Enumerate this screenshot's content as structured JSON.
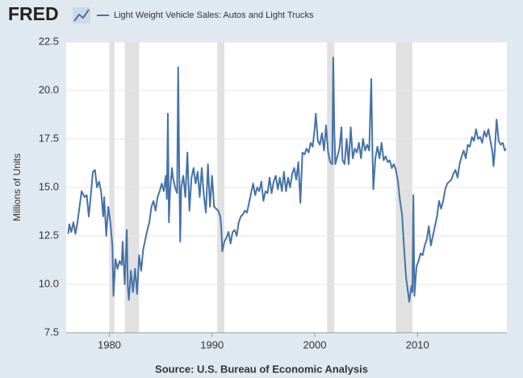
{
  "chart_data": {
    "type": "line",
    "logo": "FRED",
    "ylabel": "Millions of Units",
    "source": "Source: U.S. Bureau of Economic Analysis",
    "xlim": [
      1975.8,
      2018.7
    ],
    "ylim": [
      7.5,
      22.5
    ],
    "xticks": [
      1980,
      1990,
      2000,
      2010
    ],
    "yticks": [
      7.5,
      {
        "value": 10,
        "label": "10.0"
      },
      12.5,
      {
        "value": 15,
        "label": "15.0"
      },
      17.5,
      {
        "value": 20,
        "label": "20.0"
      },
      22.5
    ],
    "grid": true,
    "recession_color": "#e1e1e1",
    "recessions": [
      [
        1980.0,
        1980.5
      ],
      [
        1981.5,
        1982.9
      ],
      [
        1990.5,
        1991.2
      ],
      [
        2001.2,
        2001.9
      ],
      [
        2007.9,
        2009.5
      ]
    ],
    "x": [
      1976.0,
      1976.1,
      1976.3,
      1976.5,
      1976.7,
      1976.9,
      1977.1,
      1977.3,
      1977.6,
      1977.8,
      1978.0,
      1978.2,
      1978.4,
      1978.6,
      1978.8,
      1979.0,
      1979.2,
      1979.4,
      1979.5,
      1979.7,
      1979.9,
      1980.1,
      1980.3,
      1980.4,
      1980.6,
      1980.8,
      1981.0,
      1981.2,
      1981.3,
      1981.5,
      1981.7,
      1981.8,
      1981.9,
      1982.1,
      1982.3,
      1982.5,
      1982.7,
      1982.9,
      1983.1,
      1983.3,
      1983.5,
      1983.7,
      1983.9,
      1984.1,
      1984.3,
      1984.5,
      1984.7,
      1984.9,
      1985.1,
      1985.3,
      1985.5,
      1985.6,
      1985.7,
      1985.8,
      1985.9,
      1986.1,
      1986.2,
      1986.4,
      1986.6,
      1986.7,
      1986.8,
      1986.9,
      1987.0,
      1987.2,
      1987.4,
      1987.6,
      1987.8,
      1988.0,
      1988.2,
      1988.4,
      1988.6,
      1988.8,
      1989.0,
      1989.2,
      1989.4,
      1989.6,
      1989.8,
      1990.0,
      1990.2,
      1990.4,
      1990.6,
      1990.8,
      1990.9,
      1991.0,
      1991.2,
      1991.4,
      1991.6,
      1991.8,
      1992.0,
      1992.2,
      1992.4,
      1992.6,
      1992.8,
      1993.0,
      1993.2,
      1993.4,
      1993.6,
      1993.8,
      1994.0,
      1994.2,
      1994.4,
      1994.6,
      1994.8,
      1995.0,
      1995.2,
      1995.4,
      1995.6,
      1995.8,
      1996.0,
      1996.2,
      1996.4,
      1996.6,
      1996.8,
      1997.0,
      1997.2,
      1997.4,
      1997.6,
      1997.8,
      1998.0,
      1998.2,
      1998.4,
      1998.6,
      1998.8,
      1999.0,
      1999.2,
      1999.4,
      1999.6,
      1999.8,
      2000.0,
      2000.1,
      2000.3,
      2000.5,
      2000.7,
      2000.9,
      2001.1,
      2001.3,
      2001.5,
      2001.7,
      2001.8,
      2001.9,
      2002.0,
      2002.2,
      2002.4,
      2002.6,
      2002.7,
      2002.9,
      2003.1,
      2003.3,
      2003.5,
      2003.7,
      2003.9,
      2004.1,
      2004.3,
      2004.5,
      2004.7,
      2004.9,
      2005.1,
      2005.3,
      2005.5,
      2005.6,
      2005.7,
      2005.9,
      2006.1,
      2006.3,
      2006.5,
      2006.7,
      2006.9,
      2007.1,
      2007.3,
      2007.5,
      2007.7,
      2007.9,
      2008.1,
      2008.3,
      2008.5,
      2008.6,
      2008.8,
      2008.9,
      2009.1,
      2009.2,
      2009.4,
      2009.5,
      2009.6,
      2009.7,
      2009.9,
      2010.1,
      2010.3,
      2010.5,
      2010.7,
      2010.9,
      2011.1,
      2011.3,
      2011.5,
      2011.7,
      2011.9,
      2012.1,
      2012.3,
      2012.5,
      2012.7,
      2012.9,
      2013.1,
      2013.3,
      2013.5,
      2013.7,
      2013.9,
      2014.1,
      2014.3,
      2014.5,
      2014.7,
      2014.9,
      2015.1,
      2015.3,
      2015.5,
      2015.7,
      2015.9,
      2016.1,
      2016.3,
      2016.5,
      2016.7,
      2016.9,
      2017.1,
      2017.3,
      2017.4,
      2017.5,
      2017.7,
      2017.9,
      2018.1,
      2018.3,
      2018.5,
      2018.6
    ],
    "series": [
      {
        "name": "Light Weight Vehicle Sales: Autos and Light Trucks",
        "color": "#4572a7",
        "values": [
          12.6,
          13.1,
          12.7,
          13.2,
          12.6,
          13.2,
          14.0,
          14.8,
          14.5,
          14.6,
          13.5,
          14.6,
          15.8,
          15.9,
          15.0,
          15.3,
          14.8,
          13.5,
          14.5,
          12.5,
          14.0,
          13.2,
          12.0,
          9.4,
          11.3,
          10.8,
          11.2,
          11.0,
          12.2,
          10.0,
          12.8,
          9.9,
          9.2,
          10.7,
          9.6,
          10.8,
          9.5,
          11.5,
          10.7,
          11.8,
          12.3,
          12.8,
          13.2,
          14.0,
          14.3,
          13.8,
          14.5,
          14.8,
          15.2,
          14.8,
          15.6,
          14.4,
          18.8,
          13.2,
          14.7,
          16.0,
          15.5,
          15.0,
          14.7,
          21.2,
          16.2,
          12.2,
          15.0,
          15.6,
          14.5,
          16.8,
          13.8,
          15.5,
          16.0,
          15.2,
          15.8,
          14.5,
          16.0,
          14.6,
          13.7,
          16.2,
          14.0,
          15.6,
          14.0,
          13.9,
          13.8,
          13.5,
          12.9,
          11.7,
          12.2,
          12.4,
          12.7,
          12.1,
          12.7,
          12.8,
          12.5,
          13.2,
          13.5,
          13.6,
          13.8,
          13.7,
          14.2,
          14.7,
          15.2,
          14.6,
          15.0,
          14.8,
          15.3,
          14.3,
          14.8,
          14.7,
          15.5,
          14.7,
          15.3,
          15.6,
          14.9,
          15.5,
          14.8,
          15.8,
          14.8,
          15.5,
          15.0,
          15.7,
          16.0,
          15.4,
          16.3,
          14.2,
          16.8,
          16.7,
          17.0,
          16.8,
          17.3,
          17.1,
          18.1,
          18.8,
          17.4,
          17.2,
          17.8,
          16.9,
          18.2,
          16.8,
          16.3,
          16.2,
          21.7,
          18.0,
          16.2,
          16.6,
          17.0,
          18.1,
          16.4,
          16.2,
          17.5,
          16.2,
          18.1,
          16.5,
          17.0,
          16.8,
          17.3,
          16.5,
          17.5,
          16.9,
          17.2,
          16.9,
          20.6,
          17.2,
          14.9,
          16.5,
          17.1,
          16.5,
          17.3,
          16.4,
          16.6,
          16.3,
          16.4,
          16.0,
          16.2,
          15.9,
          15.3,
          14.3,
          13.6,
          12.7,
          11.0,
          10.3,
          9.5,
          9.1,
          9.9,
          9.6,
          14.6,
          9.4,
          10.9,
          11.2,
          11.6,
          11.5,
          12.0,
          12.3,
          13.0,
          12.0,
          12.5,
          13.0,
          13.5,
          14.3,
          13.9,
          14.3,
          14.9,
          15.2,
          15.3,
          15.4,
          15.7,
          15.9,
          15.5,
          16.2,
          16.6,
          16.9,
          16.5,
          17.2,
          17.1,
          17.6,
          17.4,
          18.0,
          17.5,
          17.6,
          17.3,
          17.9,
          17.6,
          18.0,
          17.4,
          16.8,
          16.1,
          16.7,
          18.5,
          17.4,
          17.2,
          17.3,
          16.9,
          17.0
        ]
      }
    ]
  }
}
